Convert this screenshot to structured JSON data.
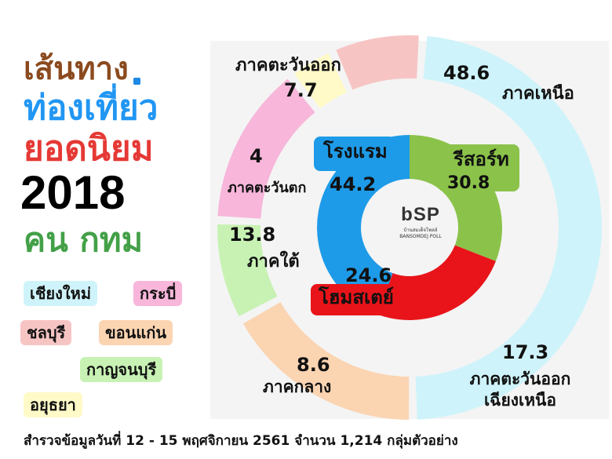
{
  "title": {
    "line1": "เส้นทาง",
    "line2": "ท่องเที่ยว",
    "line3": "ยอดนิยม",
    "line4": "2018",
    "line5": "คน กทม"
  },
  "provinces": [
    {
      "name": "เชียงใหม่",
      "color": "#CFF3FA"
    },
    {
      "name": "กระบี่",
      "color": "#F7B6DA"
    },
    {
      "name": "ชลบุรี",
      "color": "#F7C4C4"
    },
    {
      "name": "ขอนแก่น",
      "color": "#FBD4B2"
    },
    {
      "name": "กาญจนบุรี",
      "color": "#C8F2B4"
    },
    {
      "name": "อยุธยา",
      "color": "#FFFAC8"
    }
  ],
  "logo": {
    "mark": "bSP",
    "sub1": "บ้านสมเด็จโพลล์",
    "sub2": "BANSOMDEJ POLL"
  },
  "footer": "สำรวจข้อมูลวันที่  12 - 15 พฤศจิกายน 2561  จำนวน 1,214 กลุ่มตัวอย่าง",
  "chart_data": [
    {
      "type": "pie",
      "series": [
        {
          "label": "ภาคเหนือ",
          "value": 48.6,
          "color": "#CFF3FA"
        },
        {
          "label": "ภาคตะวันออกเฉียงเหนือ",
          "value": 17.3,
          "color": "#FBD4B2"
        },
        {
          "label": "ภาคกลาง",
          "value": 8.6,
          "color": "#C8F2B4"
        },
        {
          "label": "ภาคใต้",
          "value": 13.8,
          "color": "#F7B6DA"
        },
        {
          "label": "ภาคตะวันตก",
          "value": 4.0,
          "color": "#FFFAC8"
        },
        {
          "label": "ภาคตะวันออก",
          "value": 7.7,
          "color": "#F7C4C4"
        }
      ]
    },
    {
      "type": "pie",
      "series": [
        {
          "label": "รีสอร์ท",
          "value": 30.8,
          "color": "#8BC34A"
        },
        {
          "label": "โฮมสเตย์",
          "value": 24.6,
          "color": "#E8141A"
        },
        {
          "label": "โรงแรม",
          "value": 44.2,
          "color": "#1E9BE8"
        }
      ]
    }
  ]
}
